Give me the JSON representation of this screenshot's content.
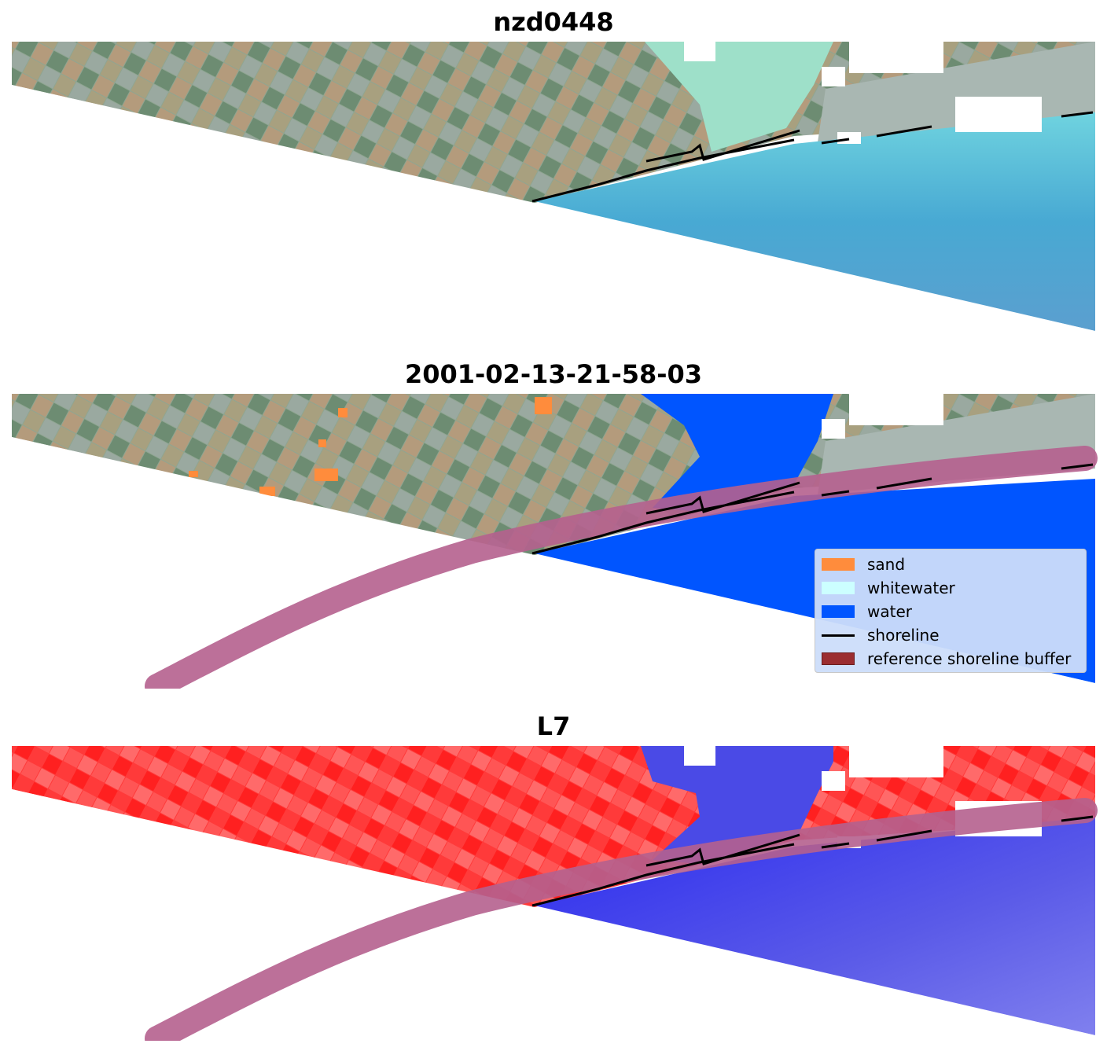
{
  "panels": [
    {
      "title": "nzd0448"
    },
    {
      "title": "2001-02-13-21-58-03"
    },
    {
      "title": "L7"
    }
  ],
  "legend": {
    "items": [
      {
        "label": "sand",
        "color": "#ff8c3c",
        "kind": "patch"
      },
      {
        "label": "whitewater",
        "color": "#ccffff",
        "kind": "patch"
      },
      {
        "label": "water",
        "color": "#0055ff",
        "kind": "patch"
      },
      {
        "label": "shoreline",
        "color": "#000000",
        "kind": "line"
      },
      {
        "label": "reference shoreline buffer",
        "color": "#9b2d30",
        "kind": "patch"
      }
    ]
  },
  "colors": {
    "land_rgb": "#7f9a88",
    "water_rgb": "#4aa9d2",
    "shallow_water_rgb": "#9ee0c9",
    "buffer": "#b5608e",
    "index_land": "#ff3030",
    "index_water": "#4040ee",
    "cloud": "#ffffff"
  }
}
